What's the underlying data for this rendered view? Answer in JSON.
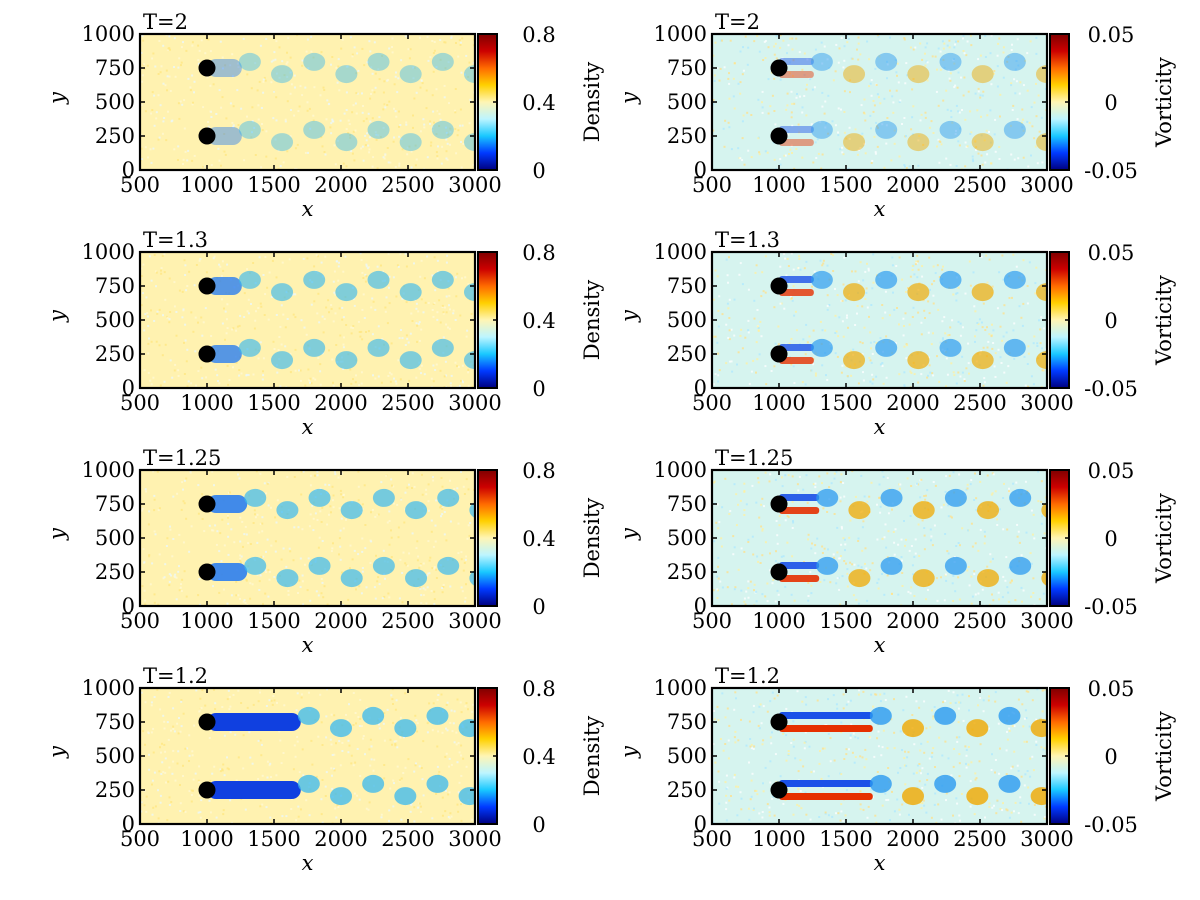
{
  "colors": {
    "frame": "#000000",
    "colormap": [
      "#00007f",
      "#0039ff",
      "#19c8ff",
      "#bdf5ff",
      "#fff5b4",
      "#ffd000",
      "#ff6a00",
      "#cc0000",
      "#7f0000"
    ],
    "obstacle": "#000000"
  },
  "chart_data": [
    {
      "type": "heatmap",
      "title": "T=2",
      "panel_param": "2",
      "field": "density",
      "xlabel": "x",
      "ylabel": "y",
      "xlim": [
        500,
        3000
      ],
      "ylim": [
        0,
        1000
      ],
      "xticks": [
        "500",
        "1000",
        "1500",
        "2000",
        "2500",
        "3000"
      ],
      "yticks": [
        "0",
        "250",
        "500",
        "750",
        "1000"
      ],
      "colorbar": {
        "label": "Density",
        "ticks": [
          "0",
          "0.4",
          "0.8"
        ],
        "range": [
          0,
          0.8
        ]
      },
      "obstacles": [
        {
          "x": 1000,
          "y": 250
        },
        {
          "x": 1000,
          "y": 750
        }
      ]
    },
    {
      "type": "heatmap",
      "title": "T=2",
      "panel_param": "2",
      "field": "vorticity",
      "xlabel": "x",
      "ylabel": "y",
      "xlim": [
        500,
        3000
      ],
      "ylim": [
        0,
        1000
      ],
      "xticks": [
        "500",
        "1000",
        "1500",
        "2000",
        "2500",
        "3000"
      ],
      "yticks": [
        "0",
        "250",
        "500",
        "750",
        "1000"
      ],
      "colorbar": {
        "label": "Vorticity",
        "ticks": [
          "-0.05",
          "0",
          "0.05"
        ],
        "range": [
          -0.05,
          0.05
        ]
      },
      "obstacles": [
        {
          "x": 1000,
          "y": 250
        },
        {
          "x": 1000,
          "y": 750
        }
      ]
    },
    {
      "type": "heatmap",
      "title": "T=1.3",
      "panel_param": "1.3",
      "field": "density",
      "xlabel": "x",
      "ylabel": "y",
      "xlim": [
        500,
        3000
      ],
      "ylim": [
        0,
        1000
      ],
      "xticks": [
        "500",
        "1000",
        "1500",
        "2000",
        "2500",
        "3000"
      ],
      "yticks": [
        "0",
        "250",
        "500",
        "750",
        "1000"
      ],
      "colorbar": {
        "label": "Density",
        "ticks": [
          "0",
          "0.4",
          "0.8"
        ],
        "range": [
          0,
          0.8
        ]
      },
      "obstacles": [
        {
          "x": 1000,
          "y": 250
        },
        {
          "x": 1000,
          "y": 750
        }
      ]
    },
    {
      "type": "heatmap",
      "title": "T=1.3",
      "panel_param": "1.3",
      "field": "vorticity",
      "xlabel": "x",
      "ylabel": "y",
      "xlim": [
        500,
        3000
      ],
      "ylim": [
        0,
        1000
      ],
      "xticks": [
        "500",
        "1000",
        "1500",
        "2000",
        "2500",
        "3000"
      ],
      "yticks": [
        "0",
        "250",
        "500",
        "750",
        "1000"
      ],
      "colorbar": {
        "label": "Vorticity",
        "ticks": [
          "-0.05",
          "0",
          "0.05"
        ],
        "range": [
          -0.05,
          0.05
        ]
      },
      "obstacles": [
        {
          "x": 1000,
          "y": 250
        },
        {
          "x": 1000,
          "y": 750
        }
      ]
    },
    {
      "type": "heatmap",
      "title": "T=1.25",
      "panel_param": "1.25",
      "field": "density",
      "xlabel": "x",
      "ylabel": "y",
      "xlim": [
        500,
        3000
      ],
      "ylim": [
        0,
        1000
      ],
      "xticks": [
        "500",
        "1000",
        "1500",
        "2000",
        "2500",
        "3000"
      ],
      "yticks": [
        "0",
        "250",
        "500",
        "750",
        "1000"
      ],
      "colorbar": {
        "label": "Density",
        "ticks": [
          "0",
          "0.4",
          "0.8"
        ],
        "range": [
          0,
          0.8
        ]
      },
      "obstacles": [
        {
          "x": 1000,
          "y": 250
        },
        {
          "x": 1000,
          "y": 750
        }
      ]
    },
    {
      "type": "heatmap",
      "title": "T=1.25",
      "panel_param": "1.25",
      "field": "vorticity",
      "xlabel": "x",
      "ylabel": "y",
      "xlim": [
        500,
        3000
      ],
      "ylim": [
        0,
        1000
      ],
      "xticks": [
        "500",
        "1000",
        "1500",
        "2000",
        "2500",
        "3000"
      ],
      "yticks": [
        "0",
        "250",
        "500",
        "750",
        "1000"
      ],
      "colorbar": {
        "label": "Vorticity",
        "ticks": [
          "-0.05",
          "0",
          "0.05"
        ],
        "range": [
          -0.05,
          0.05
        ]
      },
      "obstacles": [
        {
          "x": 1000,
          "y": 250
        },
        {
          "x": 1000,
          "y": 750
        }
      ]
    },
    {
      "type": "heatmap",
      "title": "T=1.2",
      "panel_param": "1.2",
      "field": "density",
      "xlabel": "x",
      "ylabel": "y",
      "xlim": [
        500,
        3000
      ],
      "ylim": [
        0,
        1000
      ],
      "xticks": [
        "500",
        "1000",
        "1500",
        "2000",
        "2500",
        "3000"
      ],
      "yticks": [
        "0",
        "250",
        "500",
        "750",
        "1000"
      ],
      "colorbar": {
        "label": "Density",
        "ticks": [
          "0",
          "0.4",
          "0.8"
        ],
        "range": [
          0,
          0.8
        ]
      },
      "obstacles": [
        {
          "x": 1000,
          "y": 250
        },
        {
          "x": 1000,
          "y": 750
        }
      ]
    },
    {
      "type": "heatmap",
      "title": "T=1.2",
      "panel_param": "1.2",
      "field": "vorticity",
      "xlabel": "x",
      "ylabel": "y",
      "xlim": [
        500,
        3000
      ],
      "ylim": [
        0,
        1000
      ],
      "xticks": [
        "500",
        "1000",
        "1500",
        "2000",
        "2500",
        "3000"
      ],
      "yticks": [
        "0",
        "250",
        "500",
        "750",
        "1000"
      ],
      "colorbar": {
        "label": "Vorticity",
        "ticks": [
          "-0.05",
          "0",
          "0.05"
        ],
        "range": [
          -0.05,
          0.05
        ]
      },
      "obstacles": [
        {
          "x": 1000,
          "y": 250
        },
        {
          "x": 1000,
          "y": 750
        }
      ]
    }
  ]
}
